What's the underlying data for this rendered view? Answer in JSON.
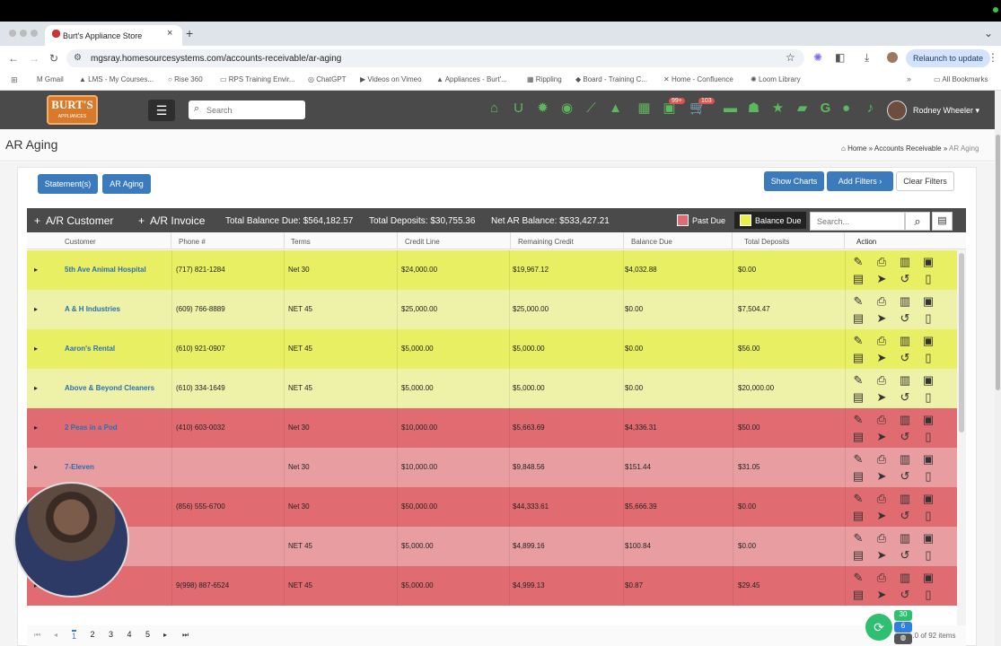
{
  "browser": {
    "tab_title": "Burt's Appliance Store",
    "url": "mgsray.homesourcesystems.com/accounts-receivable/ar-aging",
    "relaunch_label": "Relaunch to update",
    "bookmarks": [
      "Gmail",
      "LMS - My Courses...",
      "Rise 360",
      "RPS Training Envir...",
      "ChatGPT",
      "Videos on Vimeo",
      "Appliances - Burt'...",
      "Rippling",
      "Board - Training C...",
      "Home - Confluence",
      "Loom Library"
    ],
    "all_bookmarks": "All Bookmarks"
  },
  "app": {
    "logo_text": "BURT'S",
    "logo_sub": "APPLIANCES",
    "search_placeholder": "Search",
    "cart_badge": "99+",
    "cart_badge2": "103",
    "user_name": "Rodney Wheeler",
    "google_letter": "G"
  },
  "page": {
    "title": "AR Aging",
    "breadcrumb": [
      "Home",
      "Accounts Receivable",
      "AR Aging"
    ],
    "buttons": {
      "statements": "Statement(s)",
      "ar_aging": "AR Aging",
      "show_charts": "Show Charts",
      "add_filters": "Add Filters",
      "clear_filters": "Clear Filters"
    }
  },
  "grid": {
    "customer_toggle": "A/R Customer",
    "invoice_toggle": "A/R Invoice",
    "total_balance_due": "Total Balance Due: $564,182.57",
    "total_deposits": "Total Deposits: $30,755.36",
    "net_ar_balance": "Net AR Balance: $533,427.21",
    "legend_past_due": "Past Due",
    "legend_balance_due": "Balance Due",
    "legend_colors": {
      "past_due": "#e06c72",
      "balance_due": "#e9ef4b"
    },
    "search_placeholder": "Search...",
    "columns": [
      "Customer",
      "Phone #",
      "Terms",
      "Credit Line",
      "Remaining Credit",
      "Balance Due",
      "Total Deposits",
      "Action"
    ],
    "rows": [
      {
        "customer": "5th Ave Animal Hospital",
        "phone": "(717) 821-1284",
        "terms": "Net 30",
        "credit": "$24,000.00",
        "remaining": "$19,967.12",
        "balance": "$4,032.88",
        "deposits": "$0.00",
        "color": "#e9ef62"
      },
      {
        "customer": "A & H Industries",
        "phone": "(609) 766-8889",
        "terms": "NET 45",
        "credit": "$25,000.00",
        "remaining": "$25,000.00",
        "balance": "$0.00",
        "deposits": "$7,504.47",
        "color": "#edf2a8"
      },
      {
        "customer": "Aaron's Rental",
        "phone": "(610) 921-0907",
        "terms": "NET 45",
        "credit": "$5,000.00",
        "remaining": "$5,000.00",
        "balance": "$0.00",
        "deposits": "$56.00",
        "color": "#e9ef62"
      },
      {
        "customer": "Above & Beyond Cleaners",
        "phone": "(610) 334-1649",
        "terms": "NET 45",
        "credit": "$5,000.00",
        "remaining": "$5,000.00",
        "balance": "$0.00",
        "deposits": "$20,000.00",
        "color": "#edf2a8"
      },
      {
        "customer": "2 Peas in a Pod",
        "phone": "(410) 603-0032",
        "terms": "Net 30",
        "credit": "$10,000.00",
        "remaining": "$5,663.69",
        "balance": "$4,336.31",
        "deposits": "$50.00",
        "color": "#e06c72"
      },
      {
        "customer": "7-Eleven",
        "phone": "",
        "terms": "Net 30",
        "credit": "$10,000.00",
        "remaining": "$9,848.56",
        "balance": "$151.44",
        "deposits": "$31.05",
        "color": "#e89ea1"
      },
      {
        "customer": "",
        "phone": "(856) 555-6700",
        "terms": "Net 30",
        "credit": "$50,000.00",
        "remaining": "$44,333.61",
        "balance": "$5,666.39",
        "deposits": "$0.00",
        "color": "#e06c72"
      },
      {
        "customer": "",
        "phone": "",
        "terms": "NET 45",
        "credit": "$5,000.00",
        "remaining": "$4,899.16",
        "balance": "$100.84",
        "deposits": "$0.00",
        "color": "#e89ea1"
      },
      {
        "customer": "...are",
        "phone": "9(998) 887-6524",
        "terms": "NET 45",
        "credit": "$5,000.00",
        "remaining": "$4,999.13",
        "balance": "$0.87",
        "deposits": "$29.45",
        "color": "#e06c72"
      }
    ],
    "pages": [
      "1",
      "2",
      "3",
      "4",
      "5"
    ],
    "items_text": "...0 of 92 items"
  },
  "overlay": {
    "badge_green": "30",
    "badge_blue": "6"
  }
}
